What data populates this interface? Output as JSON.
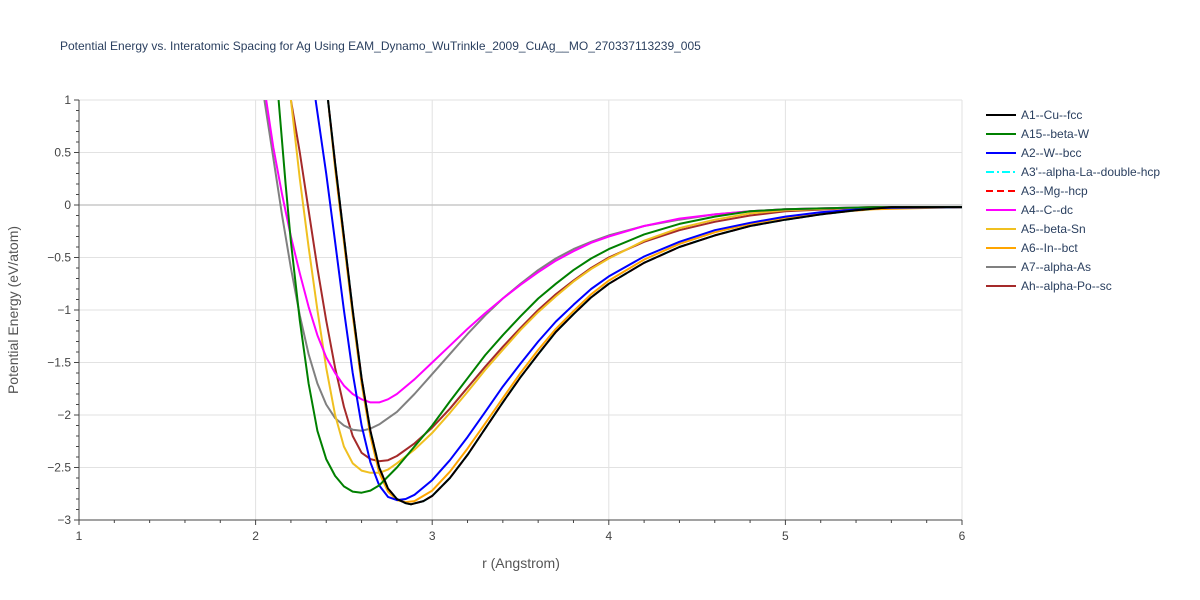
{
  "chart_data": {
    "type": "line",
    "title": "Potential Energy vs. Interatomic Spacing for Ag Using EAM_Dynamo_WuTrinkle_2009_CuAg__MO_270337113239_005",
    "xlabel": "r (Angstrom)",
    "ylabel": "Potential Energy (eV/atom)",
    "xlim": [
      1,
      6
    ],
    "ylim": [
      -3,
      1
    ],
    "xticks": [
      "1",
      "2",
      "3",
      "4",
      "5",
      "6"
    ],
    "yticks": [
      "1",
      "0.5",
      "0",
      "−0.5",
      "−1",
      "−1.5",
      "−2",
      "−2.5",
      "−3"
    ],
    "grid": true,
    "legend_position": "right",
    "series": [
      {
        "name": "A1--Cu--fcc",
        "color": "#000000",
        "dash": "solid",
        "x": [
          2.41,
          2.45,
          2.5,
          2.55,
          2.6,
          2.65,
          2.7,
          2.75,
          2.8,
          2.85,
          2.88,
          2.95,
          3.0,
          3.1,
          3.2,
          3.3,
          3.4,
          3.5,
          3.6,
          3.7,
          3.8,
          3.9,
          4.0,
          4.2,
          4.4,
          4.6,
          4.8,
          5.0,
          5.2,
          5.4,
          5.6,
          6.0
        ],
        "y": [
          1.0,
          0.4,
          -0.3,
          -1.0,
          -1.65,
          -2.15,
          -2.5,
          -2.7,
          -2.8,
          -2.84,
          -2.85,
          -2.82,
          -2.77,
          -2.6,
          -2.38,
          -2.13,
          -1.88,
          -1.64,
          -1.42,
          -1.21,
          -1.04,
          -0.88,
          -0.75,
          -0.55,
          -0.4,
          -0.29,
          -0.2,
          -0.14,
          -0.09,
          -0.05,
          -0.02,
          -0.02
        ]
      },
      {
        "name": "A15--beta-W",
        "color": "#008000",
        "dash": "solid",
        "x": [
          2.13,
          2.17,
          2.2,
          2.25,
          2.3,
          2.35,
          2.4,
          2.45,
          2.5,
          2.55,
          2.6,
          2.65,
          2.7,
          2.8,
          2.9,
          3.0,
          3.1,
          3.2,
          3.3,
          3.4,
          3.5,
          3.6,
          3.7,
          3.8,
          3.9,
          4.0,
          4.2,
          4.4,
          4.6,
          4.8,
          5.0,
          5.5,
          6.0
        ],
        "y": [
          1.0,
          0.2,
          -0.35,
          -1.1,
          -1.7,
          -2.15,
          -2.42,
          -2.58,
          -2.68,
          -2.73,
          -2.74,
          -2.72,
          -2.67,
          -2.5,
          -2.3,
          -2.1,
          -1.87,
          -1.65,
          -1.43,
          -1.24,
          -1.06,
          -0.89,
          -0.75,
          -0.62,
          -0.51,
          -0.42,
          -0.28,
          -0.18,
          -0.11,
          -0.06,
          -0.04,
          -0.02,
          -0.02
        ]
      },
      {
        "name": "A2--W--bcc",
        "color": "#0000ff",
        "dash": "solid",
        "x": [
          2.34,
          2.4,
          2.45,
          2.5,
          2.55,
          2.6,
          2.65,
          2.7,
          2.75,
          2.8,
          2.85,
          2.9,
          3.0,
          3.1,
          3.2,
          3.3,
          3.4,
          3.5,
          3.6,
          3.7,
          3.8,
          3.9,
          4.0,
          4.2,
          4.4,
          4.6,
          4.8,
          5.0,
          5.2,
          5.5,
          6.0
        ],
        "y": [
          1.0,
          0.3,
          -0.35,
          -1.0,
          -1.6,
          -2.1,
          -2.45,
          -2.67,
          -2.78,
          -2.81,
          -2.8,
          -2.76,
          -2.62,
          -2.43,
          -2.21,
          -1.97,
          -1.73,
          -1.51,
          -1.3,
          -1.11,
          -0.95,
          -0.8,
          -0.68,
          -0.49,
          -0.35,
          -0.24,
          -0.17,
          -0.11,
          -0.07,
          -0.03,
          -0.02
        ]
      },
      {
        "name": "A3'--alpha-La--double-hcp",
        "color": "#00ffff",
        "dash": "dashdot",
        "x": [
          2.41,
          2.45,
          2.5,
          2.55,
          2.6,
          2.65,
          2.7,
          2.75,
          2.8,
          2.85,
          2.88,
          2.95,
          3.0,
          3.1,
          3.2,
          3.3,
          3.4,
          3.5,
          3.6,
          3.7,
          3.8,
          3.9,
          4.0,
          4.2,
          4.4,
          4.6,
          4.8,
          5.0,
          5.2,
          5.4,
          5.6,
          6.0
        ],
        "y": [
          1.0,
          0.4,
          -0.3,
          -1.0,
          -1.65,
          -2.15,
          -2.5,
          -2.7,
          -2.8,
          -2.84,
          -2.85,
          -2.82,
          -2.77,
          -2.6,
          -2.38,
          -2.13,
          -1.88,
          -1.64,
          -1.42,
          -1.21,
          -1.04,
          -0.88,
          -0.75,
          -0.55,
          -0.4,
          -0.29,
          -0.2,
          -0.14,
          -0.09,
          -0.05,
          -0.02,
          -0.02
        ]
      },
      {
        "name": "A3--Mg--hcp",
        "color": "#ff0000",
        "dash": "dash",
        "x": [
          2.41,
          2.45,
          2.5,
          2.55,
          2.6,
          2.65,
          2.7,
          2.75,
          2.8,
          2.85,
          2.88,
          2.95,
          3.0,
          3.1,
          3.2,
          3.3,
          3.4,
          3.5,
          3.6,
          3.7,
          3.8,
          3.9,
          4.0,
          4.2,
          4.4,
          4.6,
          4.8,
          5.0,
          5.2,
          5.4,
          5.6,
          6.0
        ],
        "y": [
          1.0,
          0.4,
          -0.3,
          -1.0,
          -1.65,
          -2.15,
          -2.5,
          -2.7,
          -2.8,
          -2.84,
          -2.85,
          -2.82,
          -2.77,
          -2.6,
          -2.38,
          -2.13,
          -1.88,
          -1.64,
          -1.42,
          -1.21,
          -1.04,
          -0.88,
          -0.75,
          -0.55,
          -0.4,
          -0.29,
          -0.2,
          -0.14,
          -0.09,
          -0.05,
          -0.02,
          -0.02
        ]
      },
      {
        "name": "A4--C--dc",
        "color": "#ff00ff",
        "dash": "solid",
        "x": [
          2.06,
          2.1,
          2.15,
          2.2,
          2.25,
          2.3,
          2.35,
          2.4,
          2.45,
          2.5,
          2.55,
          2.6,
          2.65,
          2.7,
          2.75,
          2.8,
          2.9,
          3.0,
          3.1,
          3.2,
          3.3,
          3.4,
          3.5,
          3.6,
          3.7,
          3.8,
          3.9,
          4.0,
          4.2,
          4.4,
          4.6,
          4.8,
          5.0,
          5.5,
          6.0
        ],
        "y": [
          1.0,
          0.55,
          0.1,
          -0.3,
          -0.65,
          -0.97,
          -1.24,
          -1.45,
          -1.6,
          -1.72,
          -1.8,
          -1.85,
          -1.88,
          -1.88,
          -1.85,
          -1.8,
          -1.66,
          -1.5,
          -1.34,
          -1.18,
          -1.03,
          -0.89,
          -0.76,
          -0.64,
          -0.53,
          -0.44,
          -0.36,
          -0.3,
          -0.2,
          -0.13,
          -0.09,
          -0.06,
          -0.04,
          -0.02,
          -0.02
        ]
      },
      {
        "name": "A5--beta-Sn",
        "color": "#f0c020",
        "dash": "solid",
        "x": [
          2.2,
          2.25,
          2.3,
          2.35,
          2.4,
          2.45,
          2.5,
          2.55,
          2.6,
          2.65,
          2.7,
          2.75,
          2.8,
          2.9,
          3.0,
          3.1,
          3.2,
          3.3,
          3.4,
          3.5,
          3.6,
          3.7,
          3.8,
          3.9,
          4.0,
          4.2,
          4.4,
          4.6,
          4.8,
          5.0,
          5.5,
          6.0
        ],
        "y": [
          1.0,
          0.25,
          -0.4,
          -1.0,
          -1.55,
          -2.0,
          -2.3,
          -2.46,
          -2.53,
          -2.55,
          -2.55,
          -2.52,
          -2.46,
          -2.33,
          -2.17,
          -1.98,
          -1.78,
          -1.57,
          -1.38,
          -1.19,
          -1.02,
          -0.87,
          -0.73,
          -0.61,
          -0.51,
          -0.34,
          -0.22,
          -0.14,
          -0.08,
          -0.05,
          -0.02,
          -0.02
        ]
      },
      {
        "name": "A6--In--bct",
        "color": "#ffa500",
        "dash": "solid",
        "x": [
          2.41,
          2.45,
          2.5,
          2.55,
          2.6,
          2.65,
          2.7,
          2.75,
          2.8,
          2.85,
          2.9,
          3.0,
          3.1,
          3.2,
          3.3,
          3.4,
          3.5,
          3.6,
          3.7,
          3.8,
          3.9,
          4.0,
          4.2,
          4.4,
          4.6,
          4.8,
          5.0,
          5.2,
          5.5,
          6.0
        ],
        "y": [
          1.0,
          0.35,
          -0.35,
          -1.05,
          -1.7,
          -2.2,
          -2.55,
          -2.73,
          -2.81,
          -2.83,
          -2.82,
          -2.72,
          -2.54,
          -2.32,
          -2.08,
          -1.84,
          -1.6,
          -1.38,
          -1.18,
          -1.01,
          -0.85,
          -0.72,
          -0.52,
          -0.37,
          -0.26,
          -0.18,
          -0.12,
          -0.08,
          -0.04,
          -0.02
        ]
      },
      {
        "name": "A7--alpha-As",
        "color": "#808080",
        "dash": "solid",
        "x": [
          2.05,
          2.1,
          2.15,
          2.2,
          2.25,
          2.3,
          2.35,
          2.4,
          2.45,
          2.5,
          2.55,
          2.6,
          2.65,
          2.7,
          2.8,
          2.9,
          3.0,
          3.1,
          3.2,
          3.3,
          3.4,
          3.5,
          3.6,
          3.7,
          3.8,
          3.9,
          4.0,
          4.2,
          4.4,
          4.6,
          4.8,
          5.0,
          5.5,
          6.0
        ],
        "y": [
          1.0,
          0.45,
          -0.1,
          -0.6,
          -1.05,
          -1.42,
          -1.7,
          -1.9,
          -2.03,
          -2.1,
          -2.14,
          -2.15,
          -2.13,
          -2.09,
          -1.97,
          -1.8,
          -1.61,
          -1.42,
          -1.23,
          -1.05,
          -0.89,
          -0.75,
          -0.62,
          -0.51,
          -0.42,
          -0.35,
          -0.29,
          -0.2,
          -0.14,
          -0.09,
          -0.06,
          -0.04,
          -0.02,
          -0.02
        ]
      },
      {
        "name": "Ah--alpha-Po--sc",
        "color": "#a52a2a",
        "dash": "solid",
        "x": [
          2.2,
          2.25,
          2.3,
          2.35,
          2.4,
          2.45,
          2.5,
          2.55,
          2.6,
          2.65,
          2.7,
          2.75,
          2.8,
          2.9,
          3.0,
          3.1,
          3.2,
          3.3,
          3.4,
          3.5,
          3.6,
          3.7,
          3.8,
          3.9,
          4.0,
          4.2,
          4.4,
          4.6,
          4.8,
          5.0,
          5.5,
          6.0
        ],
        "y": [
          1.0,
          0.5,
          -0.05,
          -0.6,
          -1.1,
          -1.55,
          -1.92,
          -2.2,
          -2.36,
          -2.42,
          -2.44,
          -2.43,
          -2.39,
          -2.27,
          -2.12,
          -1.94,
          -1.74,
          -1.54,
          -1.35,
          -1.17,
          -1.0,
          -0.85,
          -0.72,
          -0.6,
          -0.5,
          -0.35,
          -0.24,
          -0.16,
          -0.1,
          -0.06,
          -0.02,
          -0.02
        ]
      }
    ]
  }
}
